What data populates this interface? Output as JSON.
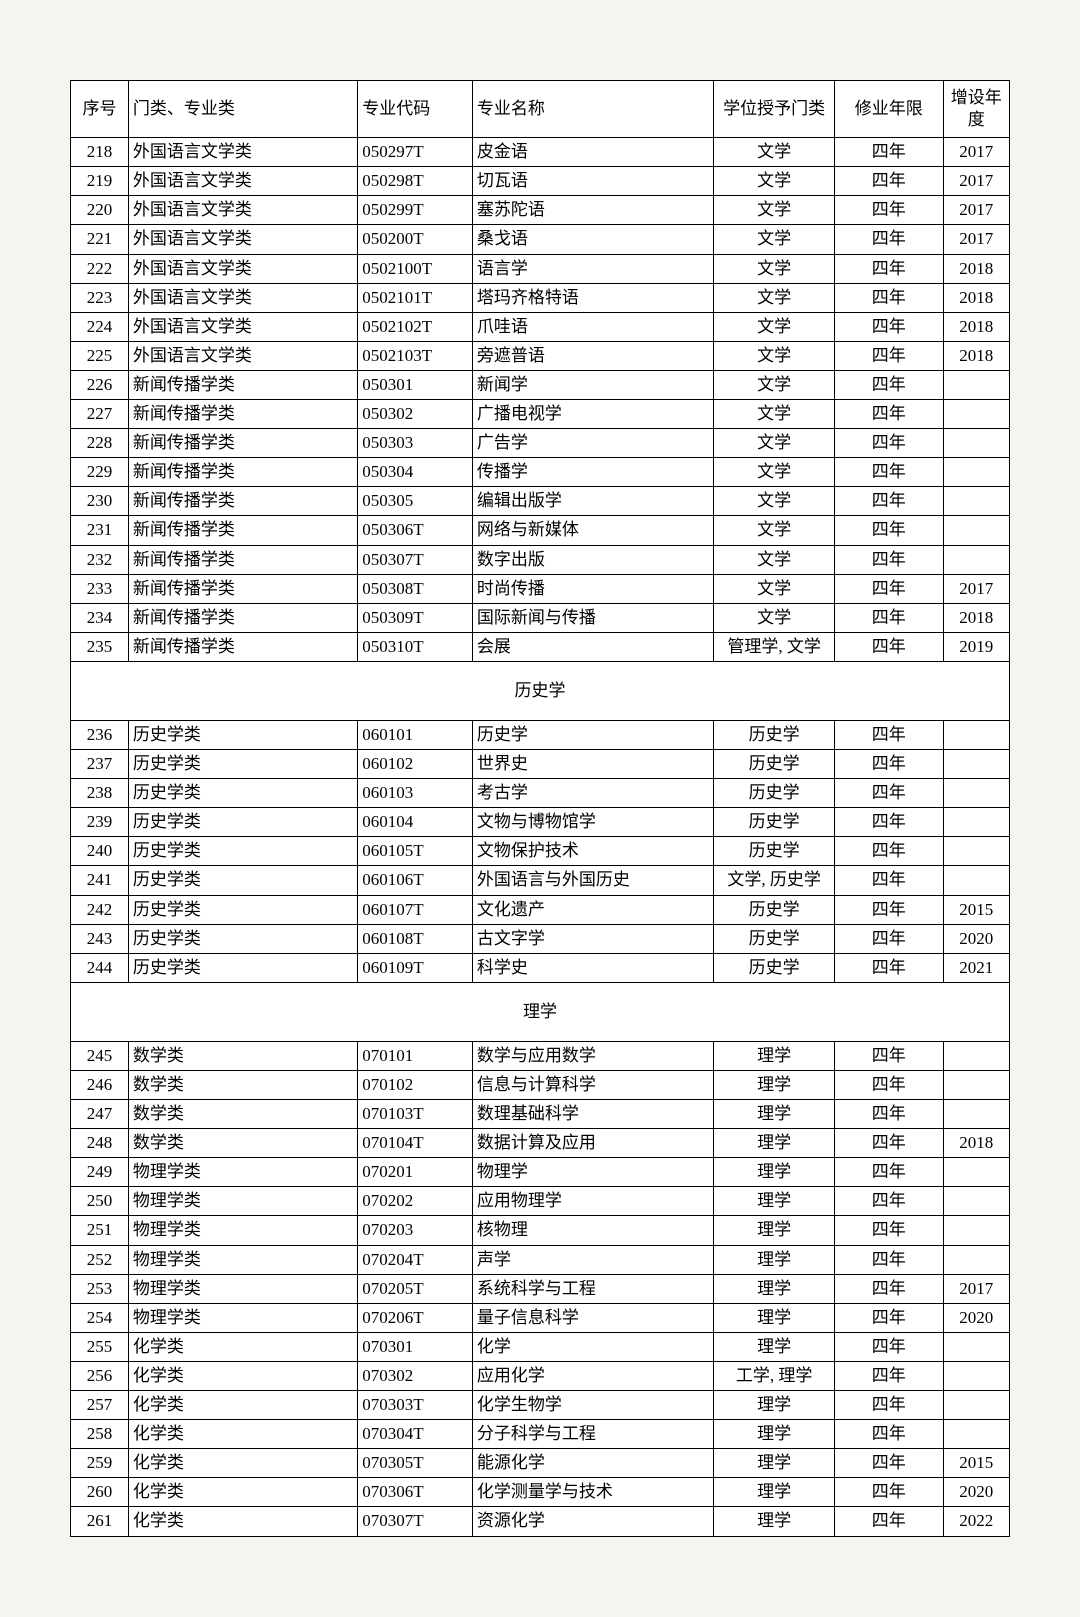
{
  "headers": {
    "seq": "序号",
    "category": "门类、专业类",
    "code": "专业代码",
    "name": "专业名称",
    "degree": "学位授予门类",
    "duration": "修业年限",
    "year": "增设年度"
  },
  "sections": [
    {
      "title": null,
      "rows": [
        {
          "seq": "218",
          "category": "外国语言文学类",
          "code": "050297T",
          "name": "皮金语",
          "degree": "文学",
          "duration": "四年",
          "year": "2017"
        },
        {
          "seq": "219",
          "category": "外国语言文学类",
          "code": "050298T",
          "name": "切瓦语",
          "degree": "文学",
          "duration": "四年",
          "year": "2017"
        },
        {
          "seq": "220",
          "category": "外国语言文学类",
          "code": "050299T",
          "name": "塞苏陀语",
          "degree": "文学",
          "duration": "四年",
          "year": "2017"
        },
        {
          "seq": "221",
          "category": "外国语言文学类",
          "code": "050200T",
          "name": "桑戈语",
          "degree": "文学",
          "duration": "四年",
          "year": "2017"
        },
        {
          "seq": "222",
          "category": "外国语言文学类",
          "code": "0502100T",
          "name": "语言学",
          "degree": "文学",
          "duration": "四年",
          "year": "2018"
        },
        {
          "seq": "223",
          "category": "外国语言文学类",
          "code": "0502101T",
          "name": "塔玛齐格特语",
          "degree": "文学",
          "duration": "四年",
          "year": "2018"
        },
        {
          "seq": "224",
          "category": "外国语言文学类",
          "code": "0502102T",
          "name": "爪哇语",
          "degree": "文学",
          "duration": "四年",
          "year": "2018"
        },
        {
          "seq": "225",
          "category": "外国语言文学类",
          "code": "0502103T",
          "name": "旁遮普语",
          "degree": "文学",
          "duration": "四年",
          "year": "2018"
        },
        {
          "seq": "226",
          "category": "新闻传播学类",
          "code": "050301",
          "name": "新闻学",
          "degree": "文学",
          "duration": "四年",
          "year": ""
        },
        {
          "seq": "227",
          "category": "新闻传播学类",
          "code": "050302",
          "name": "广播电视学",
          "degree": "文学",
          "duration": "四年",
          "year": ""
        },
        {
          "seq": "228",
          "category": "新闻传播学类",
          "code": "050303",
          "name": "广告学",
          "degree": "文学",
          "duration": "四年",
          "year": ""
        },
        {
          "seq": "229",
          "category": "新闻传播学类",
          "code": "050304",
          "name": "传播学",
          "degree": "文学",
          "duration": "四年",
          "year": ""
        },
        {
          "seq": "230",
          "category": "新闻传播学类",
          "code": "050305",
          "name": "编辑出版学",
          "degree": "文学",
          "duration": "四年",
          "year": ""
        },
        {
          "seq": "231",
          "category": "新闻传播学类",
          "code": "050306T",
          "name": "网络与新媒体",
          "degree": "文学",
          "duration": "四年",
          "year": ""
        },
        {
          "seq": "232",
          "category": "新闻传播学类",
          "code": "050307T",
          "name": "数字出版",
          "degree": "文学",
          "duration": "四年",
          "year": ""
        },
        {
          "seq": "233",
          "category": "新闻传播学类",
          "code": "050308T",
          "name": "时尚传播",
          "degree": "文学",
          "duration": "四年",
          "year": "2017"
        },
        {
          "seq": "234",
          "category": "新闻传播学类",
          "code": "050309T",
          "name": "国际新闻与传播",
          "degree": "文学",
          "duration": "四年",
          "year": "2018"
        },
        {
          "seq": "235",
          "category": "新闻传播学类",
          "code": "050310T",
          "name": "会展",
          "degree": "管理学, 文学",
          "duration": "四年",
          "year": "2019"
        }
      ]
    },
    {
      "title": "历史学",
      "rows": [
        {
          "seq": "236",
          "category": "历史学类",
          "code": "060101",
          "name": "历史学",
          "degree": "历史学",
          "duration": "四年",
          "year": ""
        },
        {
          "seq": "237",
          "category": "历史学类",
          "code": "060102",
          "name": "世界史",
          "degree": "历史学",
          "duration": "四年",
          "year": ""
        },
        {
          "seq": "238",
          "category": "历史学类",
          "code": "060103",
          "name": "考古学",
          "degree": "历史学",
          "duration": "四年",
          "year": ""
        },
        {
          "seq": "239",
          "category": "历史学类",
          "code": "060104",
          "name": "文物与博物馆学",
          "degree": "历史学",
          "duration": "四年",
          "year": ""
        },
        {
          "seq": "240",
          "category": "历史学类",
          "code": "060105T",
          "name": "文物保护技术",
          "degree": "历史学",
          "duration": "四年",
          "year": ""
        },
        {
          "seq": "241",
          "category": "历史学类",
          "code": "060106T",
          "name": "外国语言与外国历史",
          "degree": "文学, 历史学",
          "duration": "四年",
          "year": ""
        },
        {
          "seq": "242",
          "category": "历史学类",
          "code": "060107T",
          "name": "文化遗产",
          "degree": "历史学",
          "duration": "四年",
          "year": "2015"
        },
        {
          "seq": "243",
          "category": "历史学类",
          "code": "060108T",
          "name": "古文字学",
          "degree": "历史学",
          "duration": "四年",
          "year": "2020"
        },
        {
          "seq": "244",
          "category": "历史学类",
          "code": "060109T",
          "name": "科学史",
          "degree": "历史学",
          "duration": "四年",
          "year": "2021"
        }
      ]
    },
    {
      "title": "理学",
      "rows": [
        {
          "seq": "245",
          "category": "数学类",
          "code": "070101",
          "name": "数学与应用数学",
          "degree": "理学",
          "duration": "四年",
          "year": ""
        },
        {
          "seq": "246",
          "category": "数学类",
          "code": "070102",
          "name": "信息与计算科学",
          "degree": "理学",
          "duration": "四年",
          "year": ""
        },
        {
          "seq": "247",
          "category": "数学类",
          "code": "070103T",
          "name": "数理基础科学",
          "degree": "理学",
          "duration": "四年",
          "year": ""
        },
        {
          "seq": "248",
          "category": "数学类",
          "code": "070104T",
          "name": "数据计算及应用",
          "degree": "理学",
          "duration": "四年",
          "year": "2018"
        },
        {
          "seq": "249",
          "category": "物理学类",
          "code": "070201",
          "name": "物理学",
          "degree": "理学",
          "duration": "四年",
          "year": ""
        },
        {
          "seq": "250",
          "category": "物理学类",
          "code": "070202",
          "name": "应用物理学",
          "degree": "理学",
          "duration": "四年",
          "year": ""
        },
        {
          "seq": "251",
          "category": "物理学类",
          "code": "070203",
          "name": "核物理",
          "degree": "理学",
          "duration": "四年",
          "year": ""
        },
        {
          "seq": "252",
          "category": "物理学类",
          "code": "070204T",
          "name": "声学",
          "degree": "理学",
          "duration": "四年",
          "year": ""
        },
        {
          "seq": "253",
          "category": "物理学类",
          "code": "070205T",
          "name": "系统科学与工程",
          "degree": "理学",
          "duration": "四年",
          "year": "2017"
        },
        {
          "seq": "254",
          "category": "物理学类",
          "code": "070206T",
          "name": "量子信息科学",
          "degree": "理学",
          "duration": "四年",
          "year": "2020"
        },
        {
          "seq": "255",
          "category": "化学类",
          "code": "070301",
          "name": "化学",
          "degree": "理学",
          "duration": "四年",
          "year": ""
        },
        {
          "seq": "256",
          "category": "化学类",
          "code": "070302",
          "name": "应用化学",
          "degree": "工学, 理学",
          "duration": "四年",
          "year": ""
        },
        {
          "seq": "257",
          "category": "化学类",
          "code": "070303T",
          "name": "化学生物学",
          "degree": "理学",
          "duration": "四年",
          "year": ""
        },
        {
          "seq": "258",
          "category": "化学类",
          "code": "070304T",
          "name": "分子科学与工程",
          "degree": "理学",
          "duration": "四年",
          "year": ""
        },
        {
          "seq": "259",
          "category": "化学类",
          "code": "070305T",
          "name": "能源化学",
          "degree": "理学",
          "duration": "四年",
          "year": "2015"
        },
        {
          "seq": "260",
          "category": "化学类",
          "code": "070306T",
          "name": "化学测量学与技术",
          "degree": "理学",
          "duration": "四年",
          "year": "2020"
        },
        {
          "seq": "261",
          "category": "化学类",
          "code": "070307T",
          "name": "资源化学",
          "degree": "理学",
          "duration": "四年",
          "year": "2022"
        }
      ]
    }
  ],
  "styling": {
    "background_color": "#f5f5f0",
    "table_background": "#ffffff",
    "border_color": "#000000",
    "font_family": "SimSun",
    "font_size": 17,
    "col_widths": {
      "seq": 48,
      "category": 190,
      "code": 95,
      "name": 200,
      "degree": 100,
      "duration": 90,
      "year": 55
    }
  }
}
